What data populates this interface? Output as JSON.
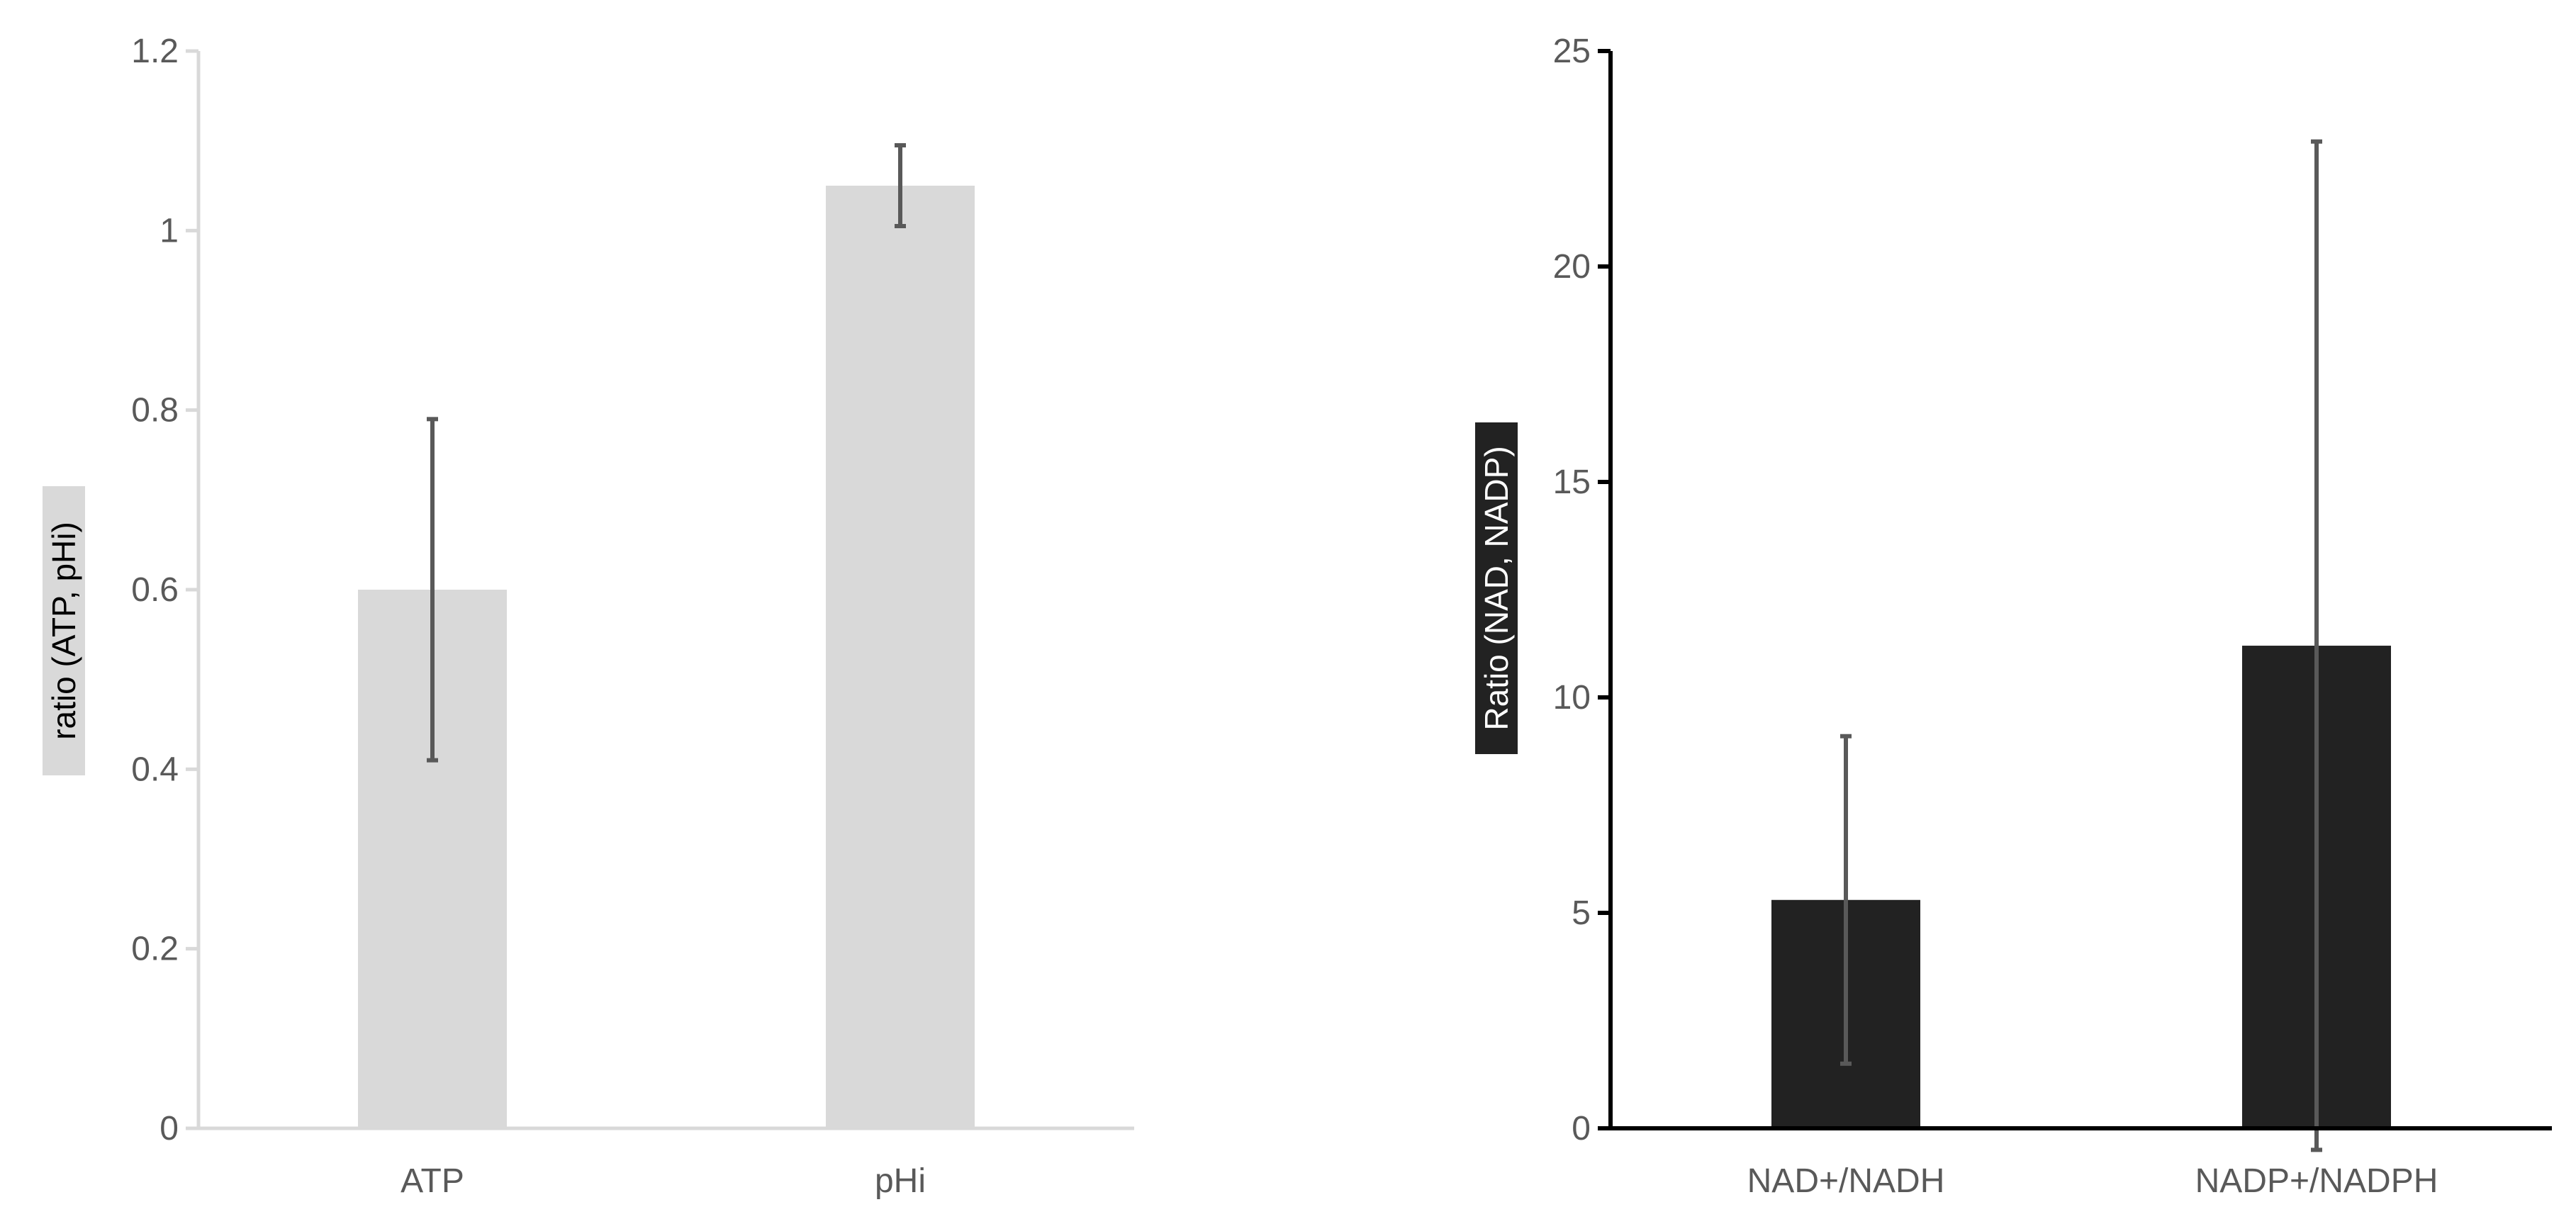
{
  "chart_data": [
    {
      "type": "bar",
      "categories": [
        "ATP",
        "pHi"
      ],
      "values": [
        0.6,
        1.05
      ],
      "errors": [
        0.19,
        0.045
      ],
      "ylabel": "ratio (ATP, pHi)",
      "xlabel": "",
      "ylim": [
        0,
        1.2
      ],
      "yticks": [
        0,
        0.2,
        0.4,
        0.6,
        0.8,
        1,
        1.2
      ],
      "ytick_labels": [
        "0",
        "0.2",
        "0.4",
        "0.6",
        "0.8",
        "1",
        "1.2"
      ],
      "grid": false,
      "bar_color": "#d9d9d9",
      "axis_color": "#d9d9d9",
      "label_bg": "#d9d9d9",
      "label_color": "#000000"
    },
    {
      "type": "bar",
      "categories": [
        "NAD+/NADH",
        "NADP+/NADPH"
      ],
      "values": [
        5.3,
        11.2
      ],
      "errors": [
        3.8,
        11.7
      ],
      "ylabel": "Ratio (NAD, NADP)",
      "xlabel": "",
      "ylim": [
        0,
        25
      ],
      "yticks": [
        0,
        5,
        10,
        15,
        20,
        25
      ],
      "ytick_labels": [
        "0",
        "5",
        "10",
        "15",
        "20",
        "25"
      ],
      "grid": false,
      "bar_color": "#222222",
      "axis_color": "#000000",
      "label_bg": "#222222",
      "label_color": "#ffffff"
    }
  ]
}
